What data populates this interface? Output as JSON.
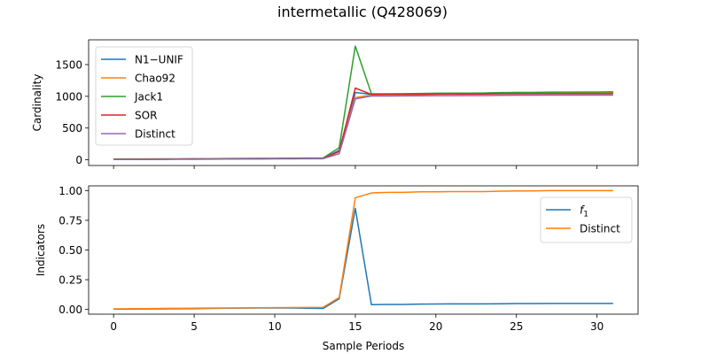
{
  "figure": {
    "title": "intermetallic (Q428069)"
  },
  "colors": {
    "blue": "#1f77b4",
    "orange": "#ff7f0e",
    "green": "#2ca02c",
    "red": "#d62728",
    "purple": "#9467bd"
  },
  "chart_data": [
    {
      "type": "line",
      "ylabel": "Cardinality",
      "xlabel": "",
      "xlim": [
        -1.55,
        32.55
      ],
      "ylim": [
        -90,
        1890
      ],
      "xticks": [
        0,
        5,
        10,
        15,
        20,
        25,
        30
      ],
      "yticks": [
        0,
        500,
        1000,
        1500
      ],
      "show_xtick_labels": false,
      "legend": "top-left",
      "x": [
        0,
        1,
        2,
        3,
        4,
        5,
        6,
        7,
        8,
        9,
        10,
        11,
        12,
        13,
        14,
        15,
        16,
        17,
        18,
        19,
        20,
        21,
        22,
        23,
        24,
        25,
        26,
        27,
        28,
        29,
        30,
        31
      ],
      "series": [
        {
          "name": "N1−UNIF",
          "color": "#1f77b4",
          "values": [
            8,
            8,
            9,
            10,
            11,
            12,
            13,
            15,
            16,
            17,
            18,
            19,
            20,
            21,
            150,
            1060,
            1030,
            1030,
            1035,
            1040,
            1045,
            1045,
            1048,
            1050,
            1055,
            1058,
            1058,
            1060,
            1060,
            1060,
            1060,
            1060
          ]
        },
        {
          "name": "Chao92",
          "color": "#ff7f0e",
          "values": [
            8,
            8,
            9,
            10,
            11,
            12,
            13,
            15,
            16,
            17,
            18,
            19,
            20,
            21,
            130,
            980,
            1020,
            1025,
            1028,
            1030,
            1035,
            1038,
            1040,
            1040,
            1045,
            1048,
            1050,
            1052,
            1052,
            1052,
            1052,
            1052
          ]
        },
        {
          "name": "Jack1",
          "color": "#2ca02c",
          "values": [
            12,
            12,
            13,
            14,
            15,
            16,
            17,
            20,
            22,
            23,
            24,
            25,
            26,
            28,
            190,
            1790,
            1040,
            1040,
            1042,
            1045,
            1048,
            1050,
            1050,
            1052,
            1058,
            1060,
            1060,
            1065,
            1065,
            1068,
            1068,
            1070
          ]
        },
        {
          "name": "SOR",
          "color": "#d62728",
          "values": [
            8,
            8,
            9,
            10,
            11,
            12,
            13,
            15,
            16,
            17,
            18,
            19,
            20,
            21,
            130,
            1130,
            1030,
            1030,
            1030,
            1032,
            1035,
            1035,
            1035,
            1036,
            1040,
            1040,
            1040,
            1042,
            1042,
            1042,
            1042,
            1042
          ]
        },
        {
          "name": "Distinct",
          "color": "#9467bd",
          "values": [
            4,
            4,
            5,
            6,
            7,
            8,
            9,
            11,
            12,
            13,
            14,
            15,
            16,
            17,
            95,
            960,
            1005,
            1005,
            1006,
            1008,
            1010,
            1010,
            1012,
            1012,
            1015,
            1016,
            1016,
            1018,
            1018,
            1018,
            1018,
            1018
          ]
        }
      ]
    },
    {
      "type": "line",
      "ylabel": "Indicators",
      "xlabel": "Sample Periods",
      "xlim": [
        -1.55,
        32.55
      ],
      "ylim": [
        -0.04,
        1.04
      ],
      "xticks": [
        0,
        5,
        10,
        15,
        20,
        25,
        30
      ],
      "yticks": [
        0.0,
        0.25,
        0.5,
        0.75,
        1.0
      ],
      "ytick_labels": [
        "0.00",
        "0.25",
        "0.50",
        "0.75",
        "1.00"
      ],
      "show_xtick_labels": true,
      "legend": "top-right",
      "x": [
        0,
        1,
        2,
        3,
        4,
        5,
        6,
        7,
        8,
        9,
        10,
        11,
        12,
        13,
        14,
        15,
        16,
        17,
        18,
        19,
        20,
        21,
        22,
        23,
        24,
        25,
        26,
        27,
        28,
        29,
        30,
        31
      ],
      "series": [
        {
          "name": "f1",
          "color": "#1f77b4",
          "values": [
            0.002,
            0.003,
            0.004,
            0.005,
            0.006,
            0.007,
            0.008,
            0.01,
            0.011,
            0.012,
            0.012,
            0.012,
            0.01,
            0.008,
            0.09,
            0.85,
            0.04,
            0.042,
            0.042,
            0.045,
            0.046,
            0.047,
            0.047,
            0.047,
            0.048,
            0.049,
            0.049,
            0.05,
            0.05,
            0.05,
            0.05,
            0.05
          ]
        },
        {
          "name": "Distinct",
          "color": "#ff7f0e",
          "values": [
            0.005,
            0.006,
            0.007,
            0.008,
            0.009,
            0.01,
            0.011,
            0.012,
            0.013,
            0.014,
            0.015,
            0.016,
            0.017,
            0.018,
            0.1,
            0.94,
            0.98,
            0.985,
            0.985,
            0.99,
            0.99,
            0.992,
            0.992,
            0.992,
            0.995,
            0.997,
            0.997,
            1.0,
            1.0,
            1.0,
            1.0,
            1.0
          ]
        }
      ]
    }
  ]
}
